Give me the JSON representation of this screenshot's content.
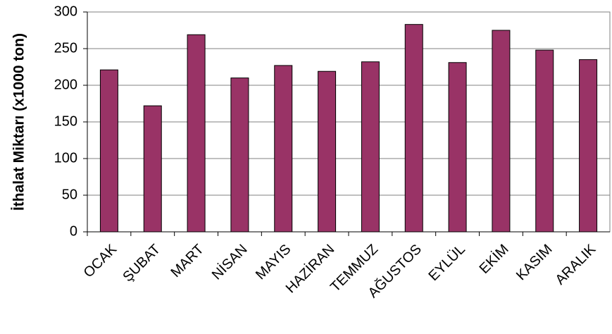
{
  "chart_data": {
    "type": "bar",
    "y_label": "İthalat Miktarı (x1000 ton)",
    "categories": [
      "OCAK",
      "ŞUBAT",
      "MART",
      "NİSAN",
      "MAYIS",
      "HAZİRAN",
      "TEMMUZ",
      "AĞUSTOS",
      "EYLÜL",
      "EKİM",
      "KASIM",
      "ARALIK"
    ],
    "values": [
      221,
      172,
      269,
      210,
      227,
      219,
      232,
      283,
      231,
      275,
      248,
      235
    ],
    "color": "#993366",
    "ylim": [
      0,
      300
    ],
    "yticks": [
      0,
      50,
      100,
      150,
      200,
      250,
      300
    ],
    "grid": true
  }
}
